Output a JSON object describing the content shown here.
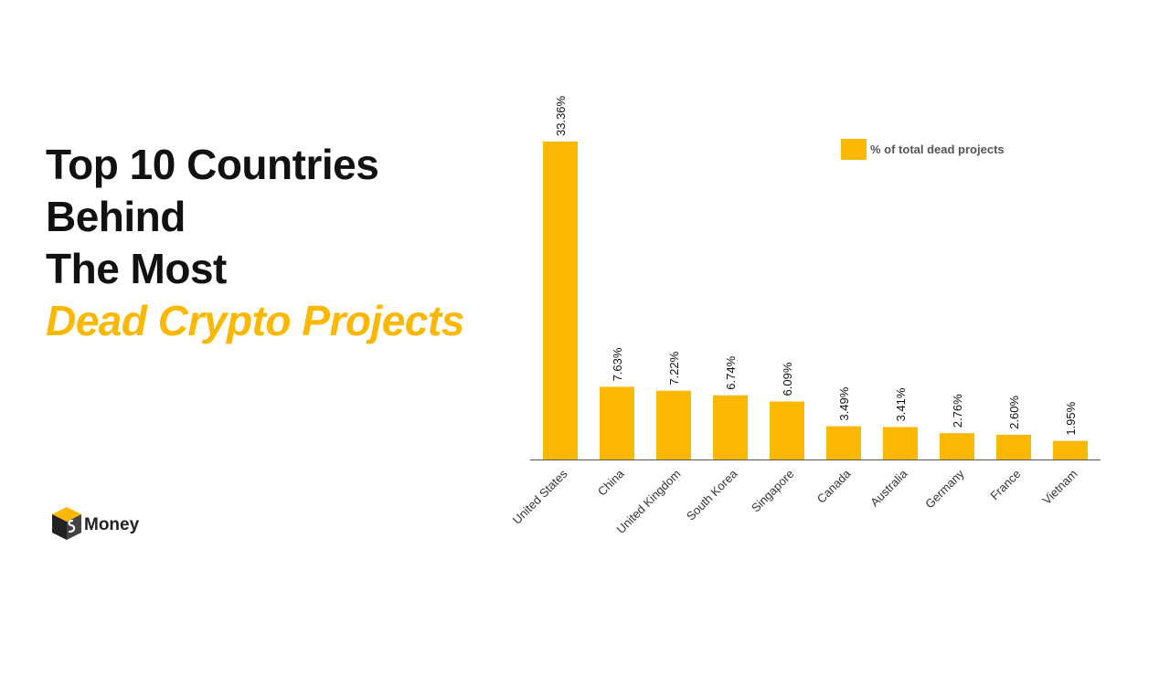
{
  "title": {
    "line1": "Top 10 Countries",
    "line2": "Behind",
    "line3": "The Most",
    "line4": "Dead Crypto Projects"
  },
  "logo": {
    "text": "Money",
    "icon": "cube-s-logo-icon"
  },
  "colors": {
    "accent": "#fbb800",
    "text": "#111111",
    "axis": "#555555"
  },
  "chart_data": {
    "type": "bar",
    "categories": [
      "United States",
      "China",
      "United Kingdom",
      "South Korea",
      "Singapore",
      "Canada",
      "Australia",
      "Germany",
      "France",
      "Vietnam"
    ],
    "series": [
      {
        "name": "% of total dead projects",
        "values": [
          33.36,
          7.63,
          7.22,
          6.74,
          6.09,
          3.49,
          3.41,
          2.76,
          2.6,
          1.95
        ]
      }
    ],
    "data_labels": [
      "33.36%",
      "7.63%",
      "7.22%",
      "6.74%",
      "6.09%",
      "3.49%",
      "3.41%",
      "2.76%",
      "2.60%",
      "1.95%"
    ],
    "ylim": [
      0,
      33.36
    ],
    "grid": false,
    "legend_position": "top-right",
    "tick_label_rotation": "-45deg",
    "data_label_rotation": "-90deg"
  }
}
